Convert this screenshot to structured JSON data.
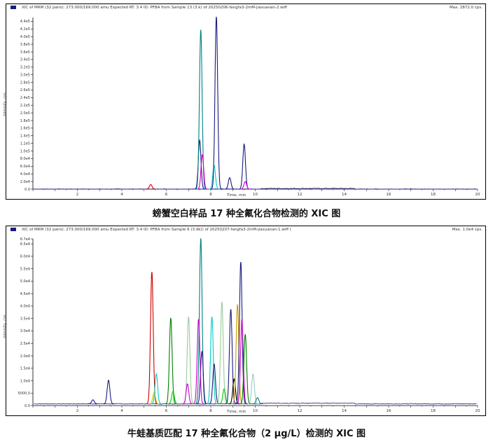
{
  "panels": [
    {
      "header": "XIC of  MRM (32 pairs): 273.000/169.000 amu Expected RT: 3.4 ID: PFBA from Sample 13 (3.k) of 20250206-fangfa3-2mM-jiaxuanan-2.wiff",
      "max_label": "Max. 2872.0 cps.",
      "ylabel": "Intensity, cps",
      "xlabel": "Time, min",
      "caption": "螃蟹空白样品 17 种全氟化合物检测的 XIC 图"
    },
    {
      "header": "XIC of  MRM (32 pairs): 273.000/169.000 amu Expected RT: 3.4 ID: PFBA from Sample 6 (3.dk)) of 20250207-fangfa3-2mM-jiaxuanan-1.wiff (",
      "max_label": "Max. 1.0e4 cps.",
      "ylabel": "Intensity, cps",
      "xlabel": "Time, min",
      "caption": "牛蛙基质匹配 17 种全氟化合物（2 μg/L）检测的 XIC 图"
    }
  ],
  "chart_data": [
    {
      "type": "line",
      "xlim": [
        0,
        20
      ],
      "ylim": [
        0,
        450000
      ],
      "x_ticks": [
        2,
        4,
        6,
        8,
        10,
        12,
        14,
        16,
        18,
        20
      ],
      "y_ticks": [
        "0.0",
        "2.0e4",
        "4.0e4",
        "6.0e4",
        "8.0e4",
        "1.0e5",
        "1.2e5",
        "1.4e5",
        "1.6e5",
        "1.8e5",
        "2.0e5",
        "2.2e5",
        "2.4e5",
        "2.6e5",
        "2.8e5",
        "3.0e5",
        "3.2e5",
        "3.4e5",
        "3.6e5",
        "3.8e5",
        "4.0e5",
        "4.2e5",
        "4.4e5"
      ],
      "baseline_color": "#1a1a80",
      "baseline": 0,
      "peaks": [
        {
          "rt": 5.3,
          "height": 12000,
          "color": "#cc0000"
        },
        {
          "rt": 7.5,
          "height": 128000,
          "color": "#1a1a80"
        },
        {
          "rt": 7.55,
          "height": 418000,
          "color": "#008080"
        },
        {
          "rt": 7.62,
          "height": 90000,
          "color": "#cc00cc"
        },
        {
          "rt": 8.15,
          "height": 62000,
          "color": "#00cccc"
        },
        {
          "rt": 8.25,
          "height": 452000,
          "color": "#1a1a80"
        },
        {
          "rt": 8.85,
          "height": 30000,
          "color": "#1a1a80"
        },
        {
          "rt": 9.5,
          "height": 118000,
          "color": "#1a1a80"
        },
        {
          "rt": 9.55,
          "height": 20000,
          "color": "#cc00cc"
        }
      ]
    },
    {
      "type": "line",
      "xlim": [
        0,
        20
      ],
      "ylim": [
        0,
        67000
      ],
      "x_ticks": [
        2,
        4,
        6,
        8,
        10,
        12,
        14,
        16,
        18,
        20
      ],
      "y_ticks": [
        "0.0",
        "5000.0",
        "1.0e4",
        "1.5e4",
        "2.0e4",
        "2.5e4",
        "3.0e4",
        "3.5e4",
        "4.0e4",
        "4.5e4",
        "5.0e4",
        "5.5e4",
        "6.0e4",
        "6.5e4",
        "6.7e4"
      ],
      "baseline_color": "#1a1a80",
      "baseline": 700,
      "peaks": [
        {
          "rt": 2.7,
          "height": 1600,
          "color": "#1a1a80"
        },
        {
          "rt": 3.4,
          "height": 9500,
          "color": "#1a1a80"
        },
        {
          "rt": 5.35,
          "height": 53000,
          "color": "#cc0000"
        },
        {
          "rt": 5.55,
          "height": 12000,
          "color": "#00cccc"
        },
        {
          "rt": 5.45,
          "height": 4500,
          "color": "#cccc00"
        },
        {
          "rt": 6.2,
          "height": 34500,
          "color": "#008000"
        },
        {
          "rt": 6.3,
          "height": 5000,
          "color": "#00cc00"
        },
        {
          "rt": 7.0,
          "height": 35000,
          "color": "#99cc99"
        },
        {
          "rt": 6.95,
          "height": 8000,
          "color": "#cc00cc"
        },
        {
          "rt": 7.55,
          "height": 66500,
          "color": "#008080"
        },
        {
          "rt": 7.6,
          "height": 21000,
          "color": "#1a1a80"
        },
        {
          "rt": 7.45,
          "height": 34000,
          "color": "#cc00cc"
        },
        {
          "rt": 8.05,
          "height": 35000,
          "color": "#00cccc"
        },
        {
          "rt": 8.15,
          "height": 16000,
          "color": "#1a1a80"
        },
        {
          "rt": 8.5,
          "height": 41000,
          "color": "#99cc99"
        },
        {
          "rt": 8.6,
          "height": 6000,
          "color": "#00cc00"
        },
        {
          "rt": 8.9,
          "height": 38000,
          "color": "#1a1a80"
        },
        {
          "rt": 9.05,
          "height": 10000,
          "color": "#000000"
        },
        {
          "rt": 9.2,
          "height": 40000,
          "color": "#cc9900"
        },
        {
          "rt": 9.35,
          "height": 57000,
          "color": "#1a1a80"
        },
        {
          "rt": 9.4,
          "height": 34000,
          "color": "#cc00cc"
        },
        {
          "rt": 9.55,
          "height": 28000,
          "color": "#008000"
        },
        {
          "rt": 9.9,
          "height": 12000,
          "color": "#99cccc"
        },
        {
          "rt": 10.1,
          "height": 2500,
          "color": "#008080"
        }
      ]
    }
  ]
}
